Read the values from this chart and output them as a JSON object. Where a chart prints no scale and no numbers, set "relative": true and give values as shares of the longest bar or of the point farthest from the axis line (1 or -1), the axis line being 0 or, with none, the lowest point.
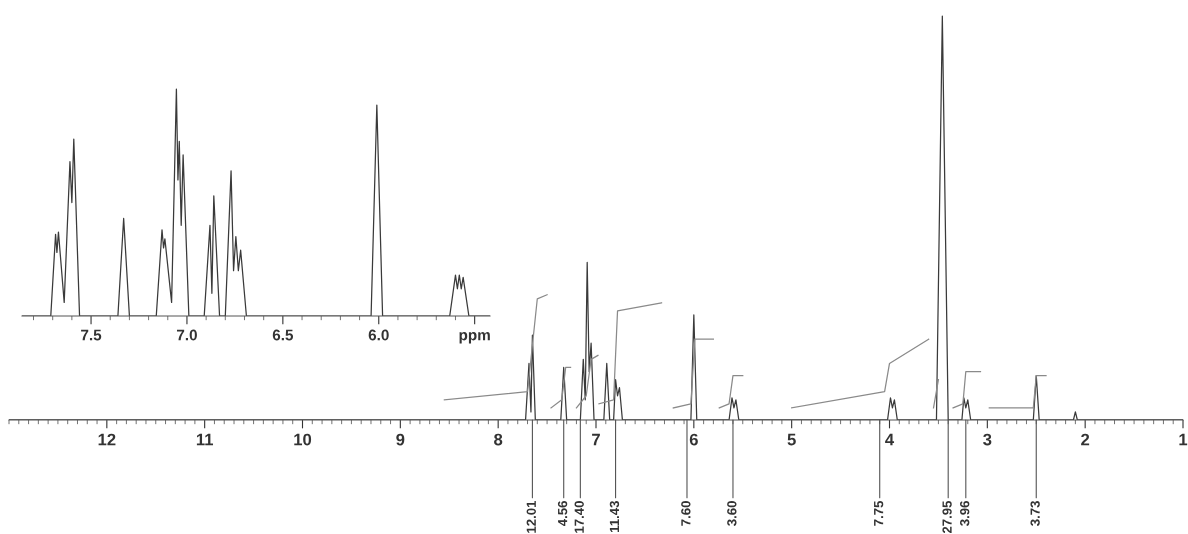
{
  "chart_data": [
    {
      "type": "line",
      "relative": true,
      "xlim": [
        13,
        1
      ],
      "xticks": [
        12,
        11,
        10,
        9,
        8,
        7,
        6,
        5,
        4,
        3,
        2,
        1
      ],
      "marker": "none",
      "line_style": "solid",
      "tick_labels": "x",
      "series": [
        {
          "color": "#3a3a3a",
          "x": [
            13,
            7.72,
            7.685,
            7.665,
            7.65,
            7.62,
            7.36,
            7.33,
            7.3,
            7.16,
            7.13,
            7.11,
            7.09,
            7.07,
            7.05,
            7.02,
            6.92,
            6.89,
            6.86,
            6.82,
            6.8,
            6.78,
            6.76,
            6.73,
            6.03,
            6.0,
            5.97,
            5.64,
            5.61,
            5.59,
            5.57,
            5.54,
            4.02,
            3.99,
            3.97,
            3.95,
            3.92,
            3.52,
            3.46,
            3.4,
            3.26,
            3.24,
            3.22,
            3.2,
            3.17,
            2.53,
            2.5,
            2.47,
            2.12,
            2.1,
            2.08,
            1
          ],
          "values": [
            0,
            0,
            0.14,
            0.02,
            0.21,
            0,
            0,
            0.13,
            0,
            0,
            0.15,
            0.05,
            0.39,
            0.12,
            0.19,
            0,
            0,
            0.14,
            0,
            0,
            0.1,
            0.06,
            0.08,
            0,
            0,
            0.26,
            0,
            0,
            0.055,
            0.03,
            0.05,
            0,
            0,
            0.055,
            0.03,
            0.05,
            0,
            0,
            1,
            0,
            0,
            0.055,
            0.03,
            0.05,
            0,
            0,
            0.11,
            0,
            0,
            0.02,
            0,
            0
          ]
        },
        {
          "color": "#8a8a8a",
          "x": [
            8.55,
            7.7,
            7.6,
            7.5,
            null,
            7.46,
            7.35,
            7.31,
            7.26,
            null,
            7.2,
            7.1,
            7.05,
            6.98,
            null,
            6.97,
            6.82,
            6.78,
            6.33,
            null,
            6.21,
            6.03,
            5.99,
            5.8,
            null,
            5.74,
            5.64,
            5.6,
            5.5,
            null,
            5.0,
            4.05,
            4.0,
            3.6,
            null,
            3.55,
            3.5,
            null,
            3.35,
            3.25,
            3.22,
            3.07,
            null,
            2.98,
            2.53,
            2.5,
            2.4
          ],
          "values": [
            0.05,
            0.07,
            0.3,
            0.31,
            null,
            0.03,
            0.05,
            0.13,
            0.13,
            null,
            0.03,
            0.06,
            0.15,
            0.16,
            null,
            0.04,
            0.05,
            0.27,
            0.29,
            null,
            0.03,
            0.04,
            0.2,
            0.2,
            null,
            0.03,
            0.04,
            0.11,
            0.11,
            null,
            0.03,
            0.07,
            0.14,
            0.2,
            null,
            0.03,
            0.1,
            null,
            0.03,
            0.04,
            0.12,
            0.12,
            null,
            0.03,
            0.03,
            0.11,
            0.11
          ]
        }
      ],
      "annotations": [
        {
          "text": "12.01",
          "x": 7.65,
          "y": 0
        },
        {
          "text": "4.56",
          "x": 7.33,
          "y": 0
        },
        {
          "text": "17.40",
          "x": 7.16,
          "y": 0
        },
        {
          "text": "11.43",
          "x": 6.8,
          "y": 0
        },
        {
          "text": "7.60",
          "x": 6.07,
          "y": 0
        },
        {
          "text": "3.60",
          "x": 5.6,
          "y": 0
        },
        {
          "text": "7.75",
          "x": 4.1,
          "y": 0
        },
        {
          "text": "27.95",
          "x": 3.4,
          "y": 0
        },
        {
          "text": "3.96",
          "x": 3.22,
          "y": 0
        },
        {
          "text": "3.73",
          "x": 2.5,
          "y": 0
        }
      ]
    },
    {
      "type": "line",
      "relative": true,
      "xlim": [
        7.86,
        5.42
      ],
      "xticks": [
        7.5,
        {
          "value": 7,
          "label": "7.0"
        },
        6.5,
        {
          "value": 6,
          "label": "6.0"
        },
        {
          "value": 5.5,
          "label": "ppm"
        }
      ],
      "marker": "none",
      "line_style": "solid",
      "tick_labels": "x",
      "series": [
        {
          "color": "#3a3a3a",
          "x": [
            7.86,
            7.71,
            7.685,
            7.678,
            7.67,
            7.64,
            7.61,
            7.6,
            7.59,
            7.56,
            7.36,
            7.33,
            7.3,
            7.16,
            7.13,
            7.122,
            7.115,
            7.08,
            7.055,
            7.047,
            7.04,
            7.03,
            7.02,
            6.99,
            6.91,
            6.88,
            6.87,
            6.86,
            6.83,
            6.8,
            6.77,
            6.757,
            6.745,
            6.732,
            6.72,
            6.69,
            6.04,
            6.01,
            5.98,
            5.63,
            5.6,
            5.59,
            5.58,
            5.57,
            5.56,
            5.53,
            5.42
          ],
          "values": [
            0,
            0,
            0.36,
            0.28,
            0.37,
            0.06,
            0.68,
            0.5,
            0.78,
            0,
            0,
            0.43,
            0,
            0,
            0.38,
            0.3,
            0.34,
            0.06,
            1.0,
            0.6,
            0.77,
            0.4,
            0.71,
            0,
            0,
            0.4,
            0.1,
            0.53,
            0,
            0,
            0.64,
            0.2,
            0.35,
            0.2,
            0.29,
            0,
            0,
            0.93,
            0,
            0,
            0.18,
            0.12,
            0.18,
            0.12,
            0.17,
            0,
            0
          ]
        }
      ]
    }
  ]
}
